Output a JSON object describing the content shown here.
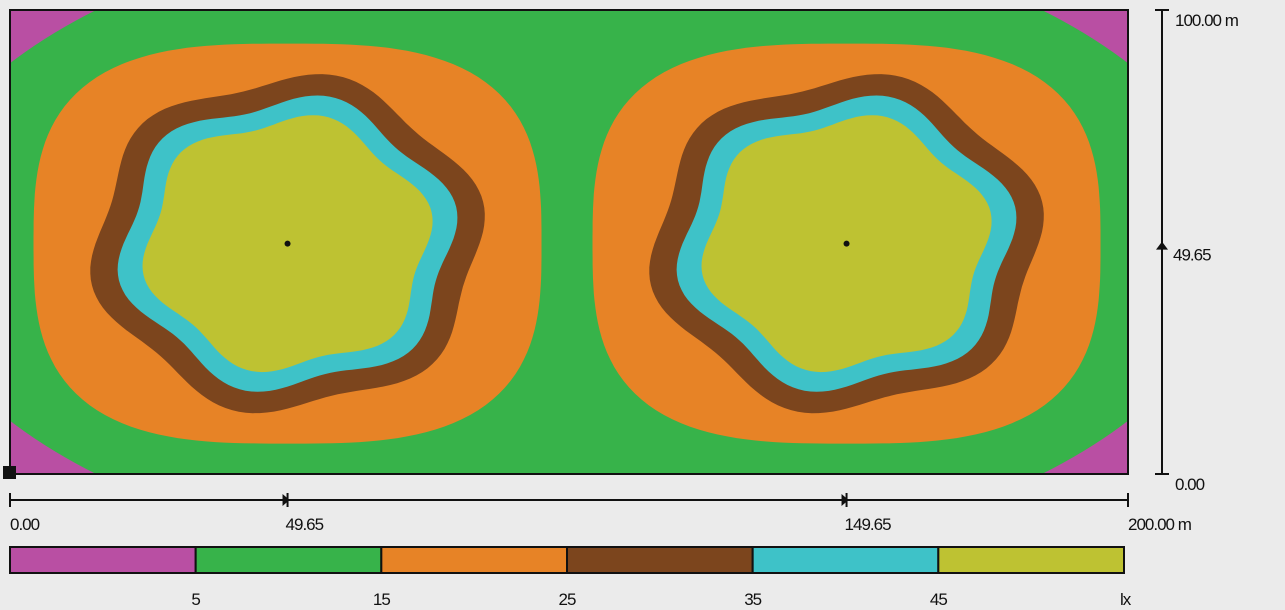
{
  "chart_data": {
    "type": "heatmap",
    "x_axis": {
      "range": [
        0,
        200
      ],
      "start_label": "0.00",
      "end_label": "200.00 m",
      "markers": [
        {
          "value": 49.65,
          "label": "49.65"
        },
        {
          "value": 149.65,
          "label": "149.65"
        }
      ]
    },
    "y_axis": {
      "range": [
        0,
        100
      ],
      "start_label": "0.00",
      "end_label": "100.00 m",
      "markers": [
        {
          "value": 49.65,
          "label": "49.65"
        }
      ]
    },
    "sources": [
      {
        "x": 49.65,
        "y": 49.65
      },
      {
        "x": 149.65,
        "y": 49.65
      }
    ],
    "legend": {
      "unit": "lx",
      "colors": [
        "#b94fa3",
        "#37b34a",
        "#e78326",
        "#7c451d",
        "#3ec2c8",
        "#bec232"
      ],
      "thresholds": [
        5,
        15,
        25,
        35,
        45
      ],
      "threshold_labels": [
        "5",
        "15",
        "25",
        "35",
        "45"
      ]
    }
  }
}
